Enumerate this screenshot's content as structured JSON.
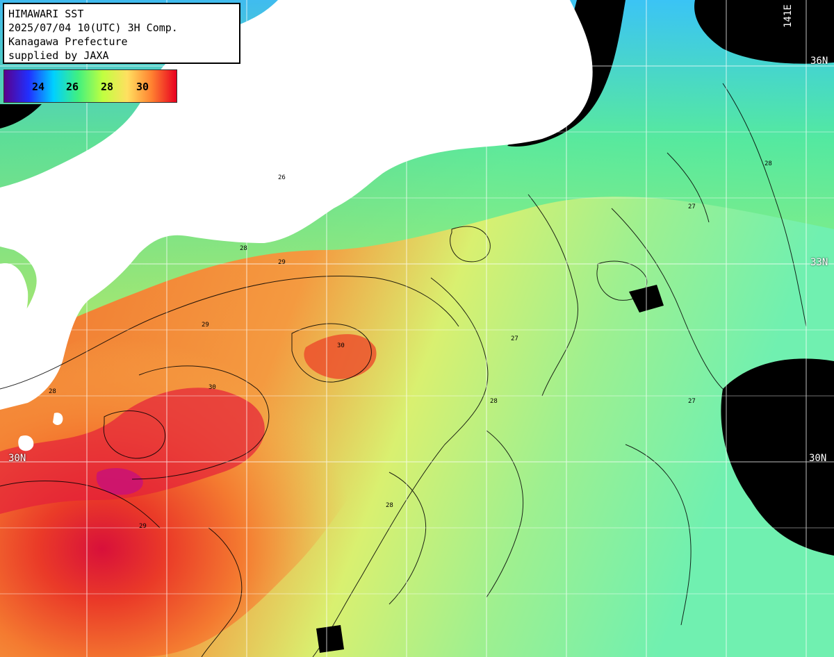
{
  "header": {
    "line1": "HIMAWARI SST",
    "line2": "2025/07/04 10(UTC) 3H Comp.",
    "line3": "Kanagawa Prefecture",
    "line4": "supplied by JAXA"
  },
  "legend": {
    "ticks": [
      "24",
      "26",
      "28",
      "30"
    ],
    "colors": [
      "#5a008c",
      "#2030ff",
      "#00d0ff",
      "#40f080",
      "#c0ff40",
      "#ffe060",
      "#ff8030",
      "#e80020"
    ]
  },
  "grid_labels": {
    "lat_36": "36N",
    "lat_33": "33N",
    "lat_30_left": "30N",
    "lat_30_right": "30N",
    "lon_141": "141E"
  },
  "contour_labels": [
    "26",
    "27",
    "28",
    "29",
    "30"
  ],
  "palette": {
    "land": "#ffffff",
    "no_data": "#000000",
    "grid": "#ffffff",
    "contour": "#000000"
  }
}
